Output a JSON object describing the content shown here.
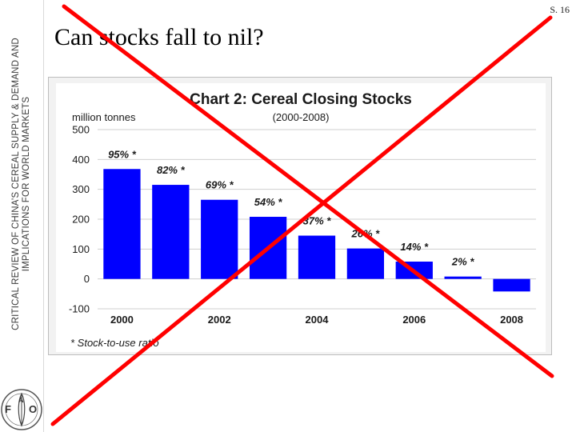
{
  "slide": {
    "number": "S. 16",
    "title": "Can stocks fall to nil?",
    "sidebar_line1": "CRITICAL REVIEW OF CHINA’S CEREAL SUPPLY & DEMAND AND",
    "sidebar_line2": "IMPLICATIONS FOR WORLD MARKETS",
    "logo_text": "FAO"
  },
  "colors": {
    "bar": "#0000ff",
    "cross": "#ff0000",
    "grid": "#cfcfcf"
  },
  "chart_data": {
    "type": "bar",
    "title": "Chart 2: Cereal Closing Stocks",
    "subtitle": "(2000-2008)",
    "ylabel": "million tonnes",
    "footnote": "* Stock-to-use ratio",
    "ylim": [
      -100,
      500
    ],
    "yticks": [
      -100,
      0,
      100,
      200,
      300,
      400,
      500
    ],
    "categories": [
      "2000",
      "2001",
      "2002",
      "2003",
      "2004",
      "2005",
      "2006",
      "2007",
      "2008"
    ],
    "xtick_labels": [
      "2000",
      "",
      "2002",
      "",
      "2004",
      "",
      "2006",
      "",
      "2008"
    ],
    "values": [
      368,
      315,
      265,
      208,
      145,
      102,
      58,
      8,
      -42
    ],
    "data_labels": [
      "95% *",
      "82% *",
      "69% *",
      "54% *",
      "37% *",
      "26% *",
      "14% *",
      "2% *",
      ""
    ],
    "grid": true
  }
}
